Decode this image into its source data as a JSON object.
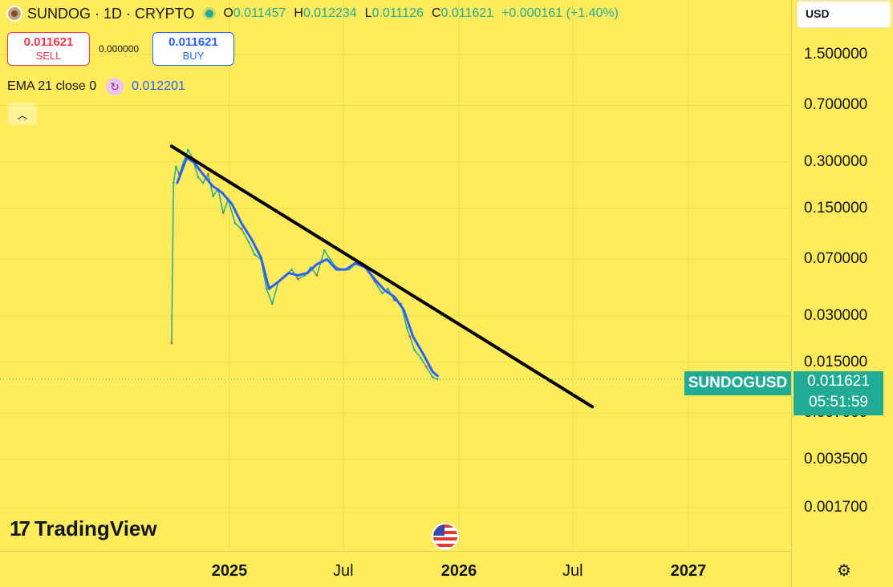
{
  "header": {
    "symbol_title": "SUNDOG · 1D · CRYPTO",
    "ohlc": [
      {
        "key": "O",
        "value": "0.011457"
      },
      {
        "key": "H",
        "value": "0.012234"
      },
      {
        "key": "L",
        "value": "0.011126"
      },
      {
        "key": "C",
        "value": "0.011621"
      }
    ],
    "change": "+0.000161 (+1.40%)"
  },
  "trade": {
    "sell_price": "0.011621",
    "sell_label": "SELL",
    "spread": "0.000000",
    "buy_price": "0.011621",
    "buy_label": "BUY"
  },
  "indicator": {
    "name": "EMA 21 close 0",
    "value": "0.012201"
  },
  "currency": "USD",
  "price_axis": {
    "ticks": [
      "1.500000",
      "0.700000",
      "0.300000",
      "0.150000",
      "0.070000",
      "0.030000",
      "0.015000",
      "0.007000",
      "0.003500",
      "0.001700"
    ]
  },
  "time_axis": {
    "ticks": [
      "2025",
      "Jul",
      "2026",
      "Jul",
      "2027"
    ]
  },
  "last_price": {
    "symbol": "SUNDOGUSD",
    "price": "0.011621",
    "countdown": "05:51:59"
  },
  "brand": "TradingView",
  "colors": {
    "background": "#FFEB5C",
    "up": "#22ab94",
    "down": "#f23645",
    "ema": "#2962ff",
    "trendline": "#000000"
  },
  "chart_data": {
    "type": "line",
    "scale": "log",
    "ylim": [
      0.0015,
      2.0
    ],
    "x_range": [
      "2024-09-15",
      "2027-03-01"
    ],
    "series": [
      {
        "values_description_none": null,
        "x": [
          "2024-10-01",
          "2024-10-04",
          "2024-10-08",
          "2024-10-13",
          "2024-10-20",
          "2024-10-27",
          "2024-11-03",
          "2024-11-12",
          "2024-11-20",
          "2024-11-28",
          "2024-12-06",
          "2024-12-14",
          "2024-12-22",
          "2024-12-30",
          "2025-01-10",
          "2025-01-20",
          "2025-02-01",
          "2025-02-10",
          "2025-02-20",
          "2025-03-01",
          "2025-03-10",
          "2025-03-20",
          "2025-04-01",
          "2025-04-10",
          "2025-04-20",
          "2025-05-01",
          "2025-05-10",
          "2025-05-20",
          "2025-06-01",
          "2025-06-10",
          "2025-06-20",
          "2025-07-01",
          "2025-07-10",
          "2025-07-20",
          "2025-08-01",
          "2025-08-10",
          "2025-08-20",
          "2025-09-01",
          "2025-09-10",
          "2025-09-20",
          "2025-10-01",
          "2025-10-10",
          "2025-10-15",
          "2025-10-22",
          "2025-11-01",
          "2025-11-10",
          "2025-11-20",
          "2025-11-28"
        ],
        "values": [
          0.02,
          0.22,
          0.28,
          0.25,
          0.3,
          0.36,
          0.32,
          0.24,
          0.22,
          0.25,
          0.18,
          0.2,
          0.14,
          0.17,
          0.12,
          0.11,
          0.09,
          0.075,
          0.07,
          0.045,
          0.036,
          0.05,
          0.055,
          0.06,
          0.052,
          0.055,
          0.062,
          0.055,
          0.08,
          0.07,
          0.062,
          0.06,
          0.06,
          0.065,
          0.065,
          0.058,
          0.05,
          0.042,
          0.045,
          0.038,
          0.036,
          0.025,
          0.022,
          0.018,
          0.016,
          0.014,
          0.012,
          0.0116
        ]
      },
      {
        "name": "EMA 21 close 0",
        "x": [
          "2024-10-10",
          "2024-10-25",
          "2024-11-05",
          "2024-11-20",
          "2024-12-05",
          "2024-12-20",
          "2025-01-05",
          "2025-01-20",
          "2025-02-05",
          "2025-02-20",
          "2025-03-05",
          "2025-03-20",
          "2025-04-05",
          "2025-04-20",
          "2025-05-05",
          "2025-05-20",
          "2025-06-05",
          "2025-06-20",
          "2025-07-05",
          "2025-07-20",
          "2025-08-05",
          "2025-08-20",
          "2025-09-05",
          "2025-09-20",
          "2025-10-05",
          "2025-10-20",
          "2025-11-05",
          "2025-11-20",
          "2025-11-28"
        ],
        "values": [
          0.22,
          0.32,
          0.3,
          0.25,
          0.21,
          0.19,
          0.16,
          0.12,
          0.095,
          0.072,
          0.045,
          0.05,
          0.057,
          0.055,
          0.057,
          0.065,
          0.07,
          0.06,
          0.06,
          0.066,
          0.062,
          0.052,
          0.044,
          0.04,
          0.033,
          0.022,
          0.017,
          0.013,
          0.0122
        ]
      },
      {
        "name": "trendline",
        "x": [
          "2024-10-01",
          "2026-08-01"
        ],
        "values": [
          0.38,
          0.0077
        ]
      }
    ]
  }
}
